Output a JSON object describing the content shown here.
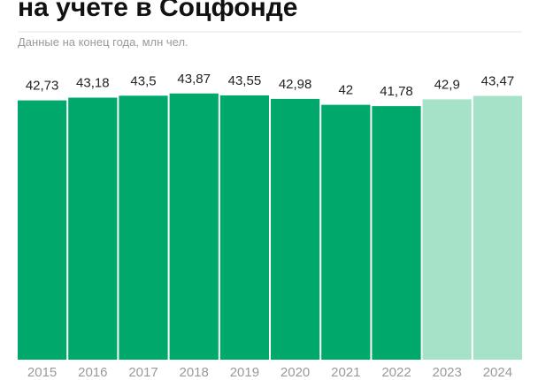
{
  "chart_data": {
    "type": "bar",
    "title": "на учете в Соцфонде",
    "subtitle": "Данные на конец года, млн чел.",
    "categories": [
      "2015",
      "2016",
      "2017",
      "2018",
      "2019",
      "2020",
      "2021",
      "2022",
      "2023",
      "2024"
    ],
    "values": [
      42.73,
      43.18,
      43.5,
      43.87,
      43.55,
      42.98,
      42,
      41.78,
      42.9,
      43.47
    ],
    "value_labels": [
      "42,73",
      "43,18",
      "43,5",
      "43,87",
      "43,55",
      "42,98",
      "42",
      "41,78",
      "42,9",
      "43,47"
    ],
    "colors": [
      "#00a86b",
      "#00a86b",
      "#00a86b",
      "#00a86b",
      "#00a86b",
      "#00a86b",
      "#00a86b",
      "#00a86b",
      "#a6e2c7",
      "#a6e2c7"
    ],
    "ylim": [
      0,
      45
    ]
  }
}
